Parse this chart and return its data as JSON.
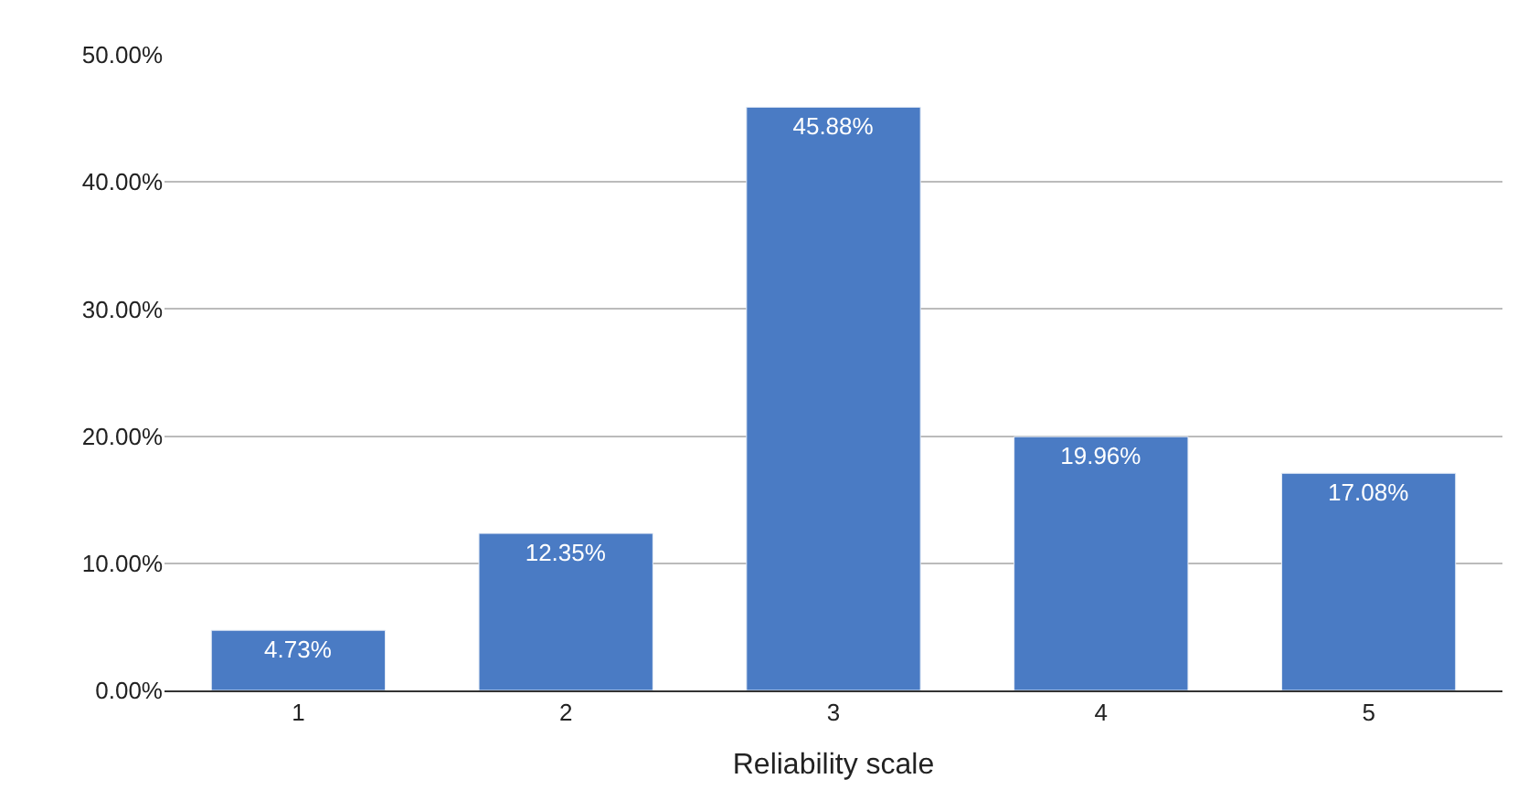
{
  "chart_data": {
    "type": "bar",
    "xlabel": "Reliability scale",
    "categories": [
      "1",
      "2",
      "3",
      "4",
      "5"
    ],
    "values": [
      4.73,
      12.35,
      45.88,
      19.96,
      17.08
    ],
    "value_labels": [
      "4.73%",
      "12.35%",
      "45.88%",
      "19.96%",
      "17.08%"
    ],
    "color": "#4a7bc4",
    "ylim": [
      0,
      50
    ],
    "yticks": [
      {
        "value": 0,
        "label": "0.00%"
      },
      {
        "value": 10,
        "label": "10.00%"
      },
      {
        "value": 20,
        "label": "20.00%"
      },
      {
        "value": 30,
        "label": "30.00%"
      },
      {
        "value": 40,
        "label": "40.00%"
      },
      {
        "value": 50,
        "label": "50.00%"
      }
    ],
    "grid": "y"
  }
}
